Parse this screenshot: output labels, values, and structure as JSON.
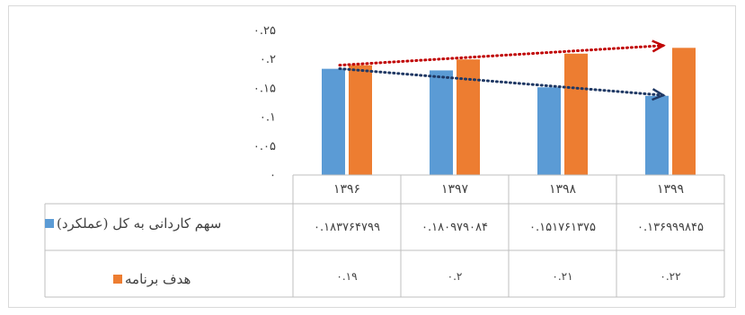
{
  "chart_data": {
    "type": "bar",
    "categories": [
      "۱۳۹۶",
      "۱۳۹۷",
      "۱۳۹۸",
      "۱۳۹۹"
    ],
    "series": [
      {
        "name": "سهم کاردانی به کل (عملکرد)",
        "color": "#5b9bd5",
        "values": [
          0.183764799,
          0.180979084,
          0.151761375,
          0.136999845
        ],
        "table_labels": [
          "۰.۱۸۳۷۶۴۷۹۹",
          "۰.۱۸۰۹۷۹۰۸۴",
          "۰.۱۵۱۷۶۱۳۷۵",
          "۰.۱۳۶۹۹۹۸۴۵"
        ]
      },
      {
        "name": "هدف برنامه",
        "color": "#ed7d31",
        "values": [
          0.19,
          0.2,
          0.21,
          0.22
        ],
        "table_labels": [
          "۰.۱۹",
          "۰.۲",
          "۰.۲۱",
          "۰.۲۲"
        ]
      }
    ],
    "y_ticks": [
      0,
      0.05,
      0.1,
      0.15,
      0.2,
      0.25
    ],
    "y_tick_labels": [
      "۰",
      "۰.۰۵",
      "۰.۱",
      "۰.۱۵",
      "۰.۲",
      "۰.۲۵"
    ],
    "ylim": [
      0,
      0.25
    ],
    "trendlines": [
      {
        "series": "هدف برنامه",
        "style": "dotted",
        "color": "#c00000",
        "from": 0.19,
        "to": 0.224
      },
      {
        "series": "سهم کاردانی به کل (عملکرد)",
        "style": "dotted",
        "color": "#1f3864",
        "from": 0.184,
        "to": 0.138
      }
    ],
    "data_table": true,
    "grid": false
  }
}
